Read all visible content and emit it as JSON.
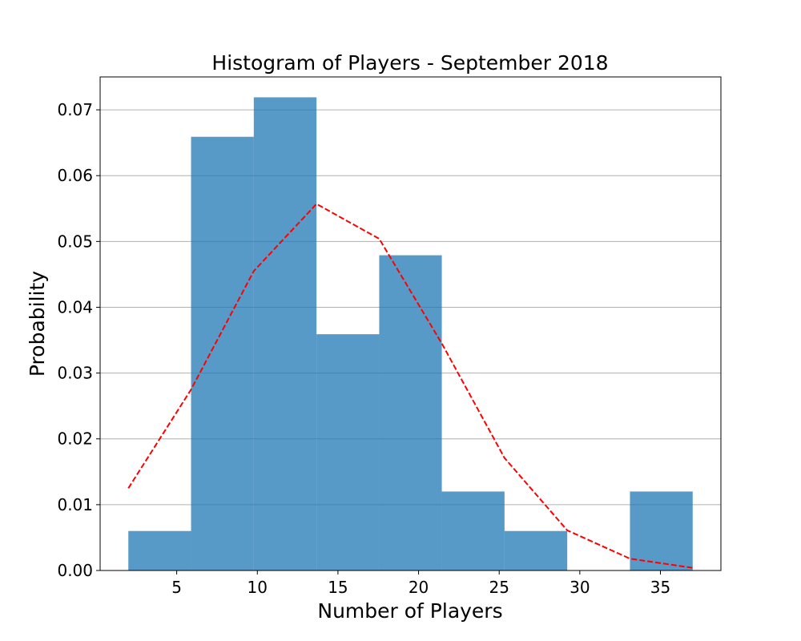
{
  "chart_data": {
    "type": "bar",
    "title": "Histogram of Players - September 2018",
    "xlabel": "Number of Players",
    "ylabel": "Probability",
    "xlim": [
      0.25,
      38.75
    ],
    "ylim": [
      0,
      0.075
    ],
    "x_ticks": [
      5,
      10,
      15,
      20,
      25,
      30,
      35
    ],
    "y_ticks": [
      0.0,
      0.01,
      0.02,
      0.03,
      0.04,
      0.05,
      0.06,
      0.07
    ],
    "y_tick_labels": [
      "0.00",
      "0.01",
      "0.02",
      "0.03",
      "0.04",
      "0.05",
      "0.06",
      "0.07"
    ],
    "grid": "y",
    "bin_edges": [
      2.0,
      5.89,
      9.78,
      13.67,
      17.56,
      21.44,
      25.33,
      29.22,
      33.11,
      37.0
    ],
    "values": [
      0.006,
      0.0659,
      0.0719,
      0.0359,
      0.0479,
      0.012,
      0.006,
      0.0,
      0.012
    ],
    "bar_color": "#1f77b4",
    "bar_alpha": 0.75,
    "curve": {
      "style": "dashed",
      "color": "#ff0000",
      "x": [
        2.0,
        5.89,
        9.78,
        13.67,
        17.56,
        21.44,
        25.33,
        29.22,
        33.11,
        37.0
      ],
      "y": [
        0.0125,
        0.0275,
        0.0455,
        0.0557,
        0.0504,
        0.0345,
        0.0171,
        0.0061,
        0.0018,
        0.0004
      ]
    }
  }
}
